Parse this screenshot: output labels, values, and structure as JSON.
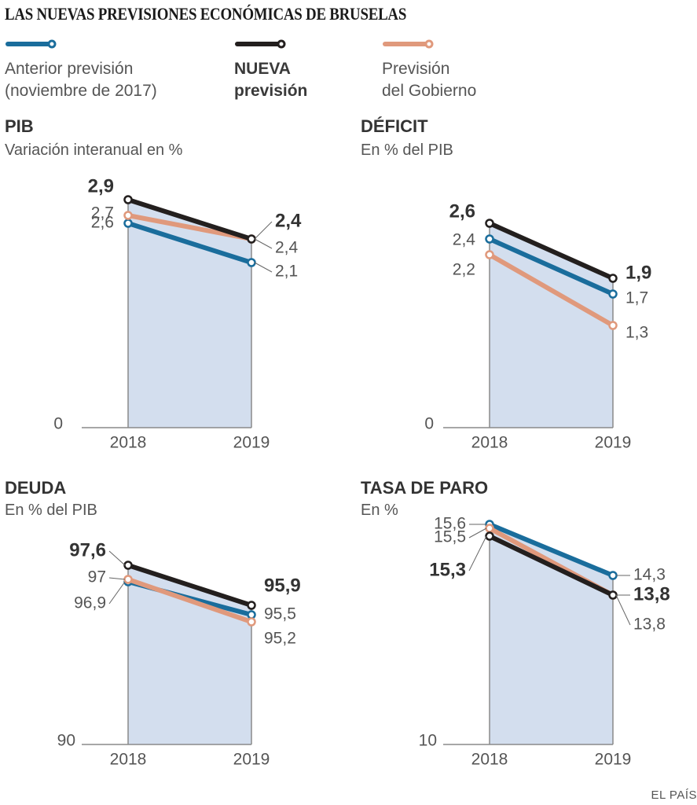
{
  "title": "LAS NUEVAS PREVISIONES ECONÓMICAS DE BRUSELAS",
  "legend": [
    {
      "key": "anterior",
      "label": "Anterior previsión\n(noviembre de 2017)",
      "color": "#1a6d9c",
      "bold": false
    },
    {
      "key": "nueva",
      "label": "NUEVA\nprevisión",
      "color": "#231f1e",
      "bold": true
    },
    {
      "key": "gobierno",
      "label": "Previsión\ndel Gobierno",
      "color": "#e0997c",
      "bold": false
    }
  ],
  "colors": {
    "fill": "#d3deee",
    "axis": "#8a8a8a",
    "leader": "#666666",
    "text": "#555555",
    "bold_text": "#333333"
  },
  "source": "EL PAÍS",
  "chart_data": [
    {
      "type": "line",
      "title": "PIB",
      "subtitle": "Variación interanual en %",
      "categories": [
        "2018",
        "2019"
      ],
      "ylim": [
        0,
        2.9
      ],
      "ybase_label": "0",
      "series": [
        {
          "name": "Anterior previsión (noviembre de 2017)",
          "key": "anterior",
          "values": [
            2.6,
            2.1
          ],
          "labels": [
            "2,6",
            "2,1"
          ]
        },
        {
          "name": "Previsión del Gobierno",
          "key": "gobierno",
          "values": [
            2.7,
            2.4
          ],
          "labels": [
            "2,7",
            "2,4"
          ]
        },
        {
          "name": "NUEVA previsión",
          "key": "nueva",
          "values": [
            2.9,
            2.4
          ],
          "labels": [
            "2,9",
            "2,4"
          ]
        }
      ]
    },
    {
      "type": "line",
      "title": "DÉFICIT",
      "subtitle": "En % del PIB",
      "categories": [
        "2018",
        "2019"
      ],
      "ylim": [
        0,
        2.6
      ],
      "ybase_label": "0",
      "series": [
        {
          "name": "Anterior previsión (noviembre de 2017)",
          "key": "anterior",
          "values": [
            2.4,
            1.7
          ],
          "labels": [
            "2,4",
            "1,7"
          ]
        },
        {
          "name": "Previsión del Gobierno",
          "key": "gobierno",
          "values": [
            2.2,
            1.3
          ],
          "labels": [
            "2,2",
            "1,3"
          ]
        },
        {
          "name": "NUEVA previsión",
          "key": "nueva",
          "values": [
            2.6,
            1.9
          ],
          "labels": [
            "2,6",
            "1,9"
          ]
        }
      ]
    },
    {
      "type": "line",
      "title": "DEUDA",
      "subtitle": "En % del PIB",
      "categories": [
        "2018",
        "2019"
      ],
      "ylim": [
        90,
        97.6
      ],
      "ybase_label": "90",
      "series": [
        {
          "name": "Anterior previsión (noviembre de 2017)",
          "key": "anterior",
          "values": [
            96.9,
            95.5
          ],
          "labels": [
            "96,9",
            "95,5"
          ]
        },
        {
          "name": "Previsión del Gobierno",
          "key": "gobierno",
          "values": [
            97.0,
            95.2
          ],
          "labels": [
            "97",
            "95,2"
          ]
        },
        {
          "name": "NUEVA previsión",
          "key": "nueva",
          "values": [
            97.6,
            95.9
          ],
          "labels": [
            "97,6",
            "95,9"
          ]
        }
      ]
    },
    {
      "type": "line",
      "title": "TASA DE PARO",
      "subtitle": "En %",
      "categories": [
        "2018",
        "2019"
      ],
      "ylim": [
        10,
        15.6
      ],
      "ybase_label": "10",
      "series": [
        {
          "name": "Anterior previsión (noviembre de 2017)",
          "key": "anterior",
          "values": [
            15.6,
            14.3
          ],
          "labels": [
            "15,6",
            "14,3"
          ]
        },
        {
          "name": "Previsión del Gobierno",
          "key": "gobierno",
          "values": [
            15.5,
            13.8
          ],
          "labels": [
            "15,5",
            "13,8"
          ]
        },
        {
          "name": "NUEVA previsión",
          "key": "nueva",
          "values": [
            15.3,
            13.8
          ],
          "labels": [
            "15,3",
            "13,8"
          ]
        }
      ]
    }
  ]
}
